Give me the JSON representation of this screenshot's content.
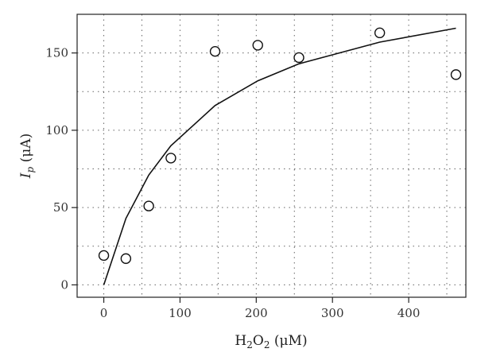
{
  "chart_data": {
    "type": "scatter",
    "xlabel_parts": {
      "pre": "H",
      "sub1": "2",
      "mid": "O",
      "sub2": "2",
      "unit": " (μM)"
    },
    "ylabel_parts": {
      "var": "I",
      "sub": "p",
      "unit": " (μA)"
    },
    "xlim": [
      -35,
      475
    ],
    "ylim": [
      -8,
      175
    ],
    "xticks": [
      0,
      100,
      200,
      300,
      400
    ],
    "yticks": [
      0,
      50,
      100,
      150
    ],
    "xgrid": [
      0,
      50,
      100,
      150,
      200,
      250,
      300,
      350,
      400,
      450
    ],
    "ygrid": [
      0,
      25,
      50,
      75,
      100,
      125,
      150
    ],
    "grid": true,
    "series": [
      {
        "kind": "points",
        "marker": "open-circle",
        "x": [
          0,
          29,
          59,
          88,
          146,
          202,
          256,
          362,
          462
        ],
        "y": [
          19,
          17,
          51,
          82,
          151,
          155,
          147,
          163,
          136
        ]
      },
      {
        "kind": "line",
        "x": [
          0,
          29,
          59,
          88,
          146,
          202,
          256,
          362,
          462
        ],
        "y": [
          0,
          43,
          71,
          90,
          116,
          132,
          143,
          157,
          166
        ]
      }
    ]
  }
}
